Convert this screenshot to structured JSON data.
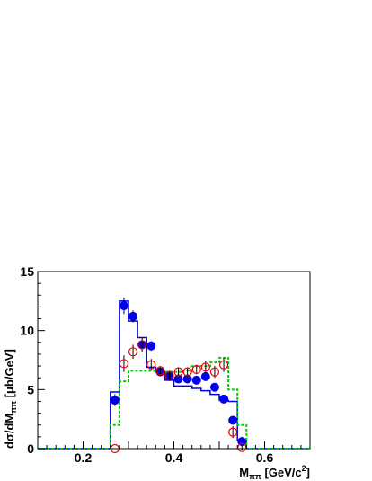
{
  "chart_data": {
    "type": "scatter",
    "title": "",
    "xlabel": {
      "main": "M",
      "sub": "ππ",
      "rest": " [GeV/c",
      "sup": "2",
      "end": "]"
    },
    "ylabel": {
      "main": "dσ/dM",
      "sub": "ππ",
      "rest": " [μb/GeV]"
    },
    "xlim": [
      0.1,
      0.7
    ],
    "ylim": [
      0,
      15
    ],
    "x_ticks": [
      {
        "value": 0.2,
        "label": "0.2"
      },
      {
        "value": 0.4,
        "label": "0.4"
      },
      {
        "value": 0.6,
        "label": "0.6"
      }
    ],
    "y_ticks": [
      {
        "value": 0,
        "label": "0"
      },
      {
        "value": 5,
        "label": "5"
      },
      {
        "value": 10,
        "label": "10"
      },
      {
        "value": 15,
        "label": "15"
      }
    ],
    "bin_edges": [
      0.26,
      0.28,
      0.3,
      0.32,
      0.34,
      0.36,
      0.38,
      0.4,
      0.42,
      0.44,
      0.46,
      0.48,
      0.5,
      0.52,
      0.54,
      0.56
    ],
    "series": [
      {
        "kind": "points",
        "marker": "filled-circle",
        "color": "#0000ee",
        "x": [
          0.27,
          0.29,
          0.31,
          0.33,
          0.35,
          0.37,
          0.39,
          0.41,
          0.43,
          0.45,
          0.47,
          0.49,
          0.51,
          0.53,
          0.55
        ],
        "y": [
          4.1,
          12.1,
          11.2,
          8.8,
          8.7,
          6.5,
          6.1,
          5.9,
          5.9,
          5.8,
          6.1,
          5.2,
          4.2,
          2.4,
          0.6
        ],
        "err": [
          0.5,
          0.7,
          0.5,
          0.4,
          0.4,
          0.3,
          0.3,
          0.3,
          0.3,
          0.3,
          0.3,
          0.3,
          0.3,
          0.3,
          0.4
        ]
      },
      {
        "kind": "points",
        "marker": "open-circle",
        "color": "#ee0000",
        "x": [
          0.27,
          0.29,
          0.31,
          0.33,
          0.35,
          0.37,
          0.39,
          0.41,
          0.43,
          0.45,
          0.47,
          0.49,
          0.51,
          0.53,
          0.55
        ],
        "y": [
          0.0,
          7.2,
          8.2,
          8.8,
          7.1,
          6.6,
          6.2,
          6.5,
          6.5,
          6.7,
          6.9,
          6.5,
          7.1,
          1.4,
          0.1
        ],
        "err": [
          0.0,
          0.7,
          0.6,
          0.6,
          0.5,
          0.4,
          0.4,
          0.4,
          0.4,
          0.4,
          0.5,
          0.5,
          0.6,
          0.5,
          0.2
        ]
      },
      {
        "kind": "histogram",
        "style": "solid",
        "color": "#0000ee",
        "values": [
          4.8,
          12.5,
          10.8,
          9.4,
          6.9,
          6.5,
          5.8,
          5.3,
          5.3,
          5.1,
          4.9,
          4.6,
          4.1,
          4.0,
          0.7
        ]
      },
      {
        "kind": "histogram",
        "style": "dashed",
        "color": "#00cc00",
        "values": [
          2.0,
          5.7,
          6.6,
          6.6,
          6.6,
          6.6,
          6.5,
          6.5,
          6.6,
          7.0,
          7.0,
          7.3,
          7.7,
          5.0,
          2.0
        ]
      }
    ]
  }
}
